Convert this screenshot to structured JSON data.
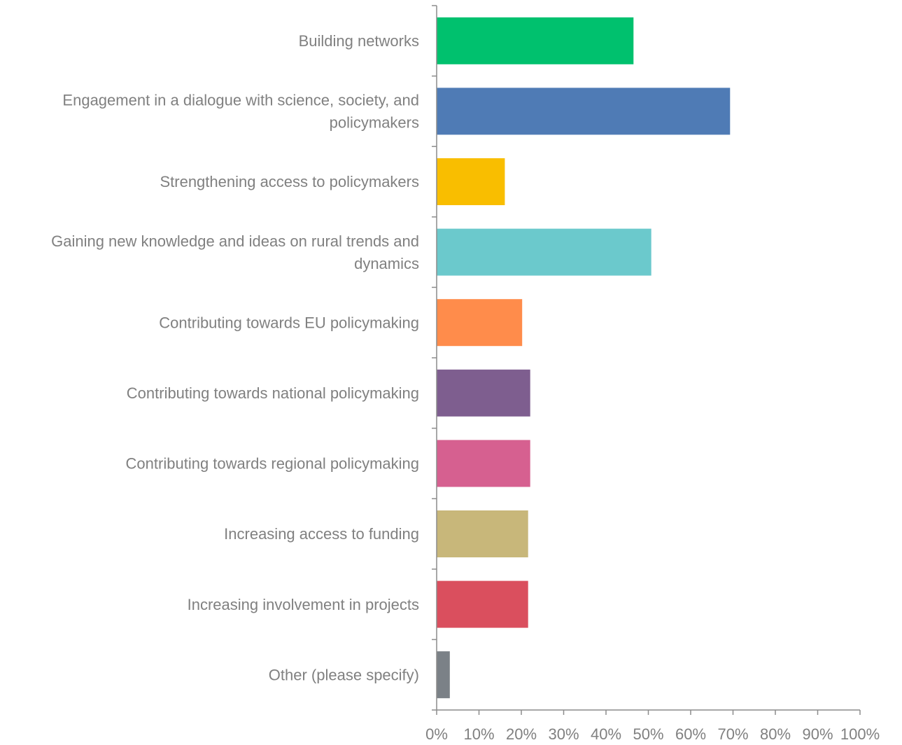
{
  "chart_data": {
    "type": "bar",
    "orientation": "horizontal",
    "categories": [
      "Building networks",
      "Engagement in a dialogue with science, society, and policymakers",
      "Strengthening access to policymakers",
      "Gaining new knowledge and ideas on rural trends and dynamics",
      "Contributing towards EU policymaking",
      "Contributing towards national policymaking",
      "Contributing towards regional policymaking",
      "Increasing access to funding",
      "Increasing involvement in projects",
      "Other (please specify)"
    ],
    "category_lines": [
      [
        "Building networks"
      ],
      [
        "Engagement in a dialogue with science, society, and",
        "policymakers"
      ],
      [
        "Strengthening access to policymakers"
      ],
      [
        "Gaining new knowledge and ideas on rural trends and",
        "dynamics"
      ],
      [
        "Contributing towards EU policymaking"
      ],
      [
        "Contributing towards national policymaking"
      ],
      [
        "Contributing towards regional policymaking"
      ],
      [
        "Increasing access to funding"
      ],
      [
        "Increasing involvement in projects"
      ],
      [
        "Other (please specify)"
      ]
    ],
    "values": [
      46.5,
      69.3,
      16.1,
      50.7,
      20.2,
      22.1,
      22.1,
      21.6,
      21.6,
      3.1
    ],
    "colors": [
      "#00C16E",
      "#4F7BB5",
      "#F9BE00",
      "#6BC9CC",
      "#FF8C4B",
      "#7E5E8F",
      "#D66090",
      "#C8B77A",
      "#DA4F5E",
      "#7B8187"
    ],
    "xlim": [
      0,
      100
    ],
    "x_ticks": [
      0,
      10,
      20,
      30,
      40,
      50,
      60,
      70,
      80,
      90,
      100
    ],
    "x_tick_labels": [
      "0%",
      "10%",
      "20%",
      "30%",
      "40%",
      "50%",
      "60%",
      "70%",
      "80%",
      "90%",
      "100%"
    ],
    "axis_color": "#8C8C8C",
    "text_color": "#808080",
    "title": "",
    "xlabel": "",
    "ylabel": "",
    "grid": false,
    "legend": "none"
  }
}
